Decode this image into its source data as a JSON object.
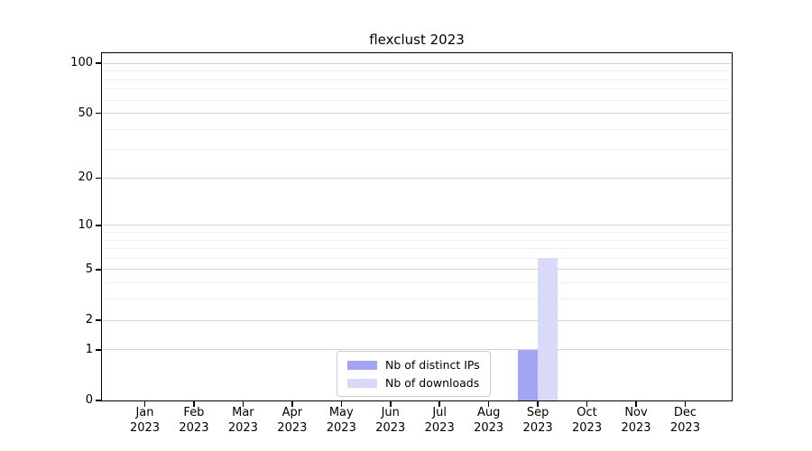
{
  "title": "flexclust 2023",
  "chart_data": {
    "type": "bar",
    "title": "flexclust 2023",
    "categories": [
      "Jan",
      "Feb",
      "Mar",
      "Apr",
      "May",
      "Jun",
      "Jul",
      "Aug",
      "Sep",
      "Oct",
      "Nov",
      "Dec"
    ],
    "year_label": "2023",
    "series": [
      {
        "name": "Nb of distinct IPs",
        "color": "#a4a4f4",
        "values": [
          0,
          0,
          0,
          0,
          0,
          0,
          0,
          0,
          1,
          0,
          0,
          0
        ]
      },
      {
        "name": "Nb of downloads",
        "color": "#d9d9f9",
        "values": [
          0,
          0,
          0,
          0,
          0,
          0,
          0,
          0,
          6,
          0,
          0,
          0
        ]
      }
    ],
    "xlabel": "",
    "ylabel": "",
    "y_axis": {
      "scale": "log1p",
      "ticks": [
        0,
        1,
        2,
        5,
        10,
        20,
        50,
        100
      ],
      "top_value": 115,
      "major_gridlines": [
        1,
        2,
        5,
        10,
        20,
        50,
        100
      ],
      "minor_gridlines": [
        3,
        4,
        6,
        7,
        8,
        9,
        30,
        40,
        60,
        70,
        80,
        90
      ]
    },
    "grid": true,
    "legend_position": "bottom-center",
    "colors": {
      "major_grid": "#d4d4d4",
      "minor_grid": "#efefef",
      "axis": "#000000"
    }
  }
}
